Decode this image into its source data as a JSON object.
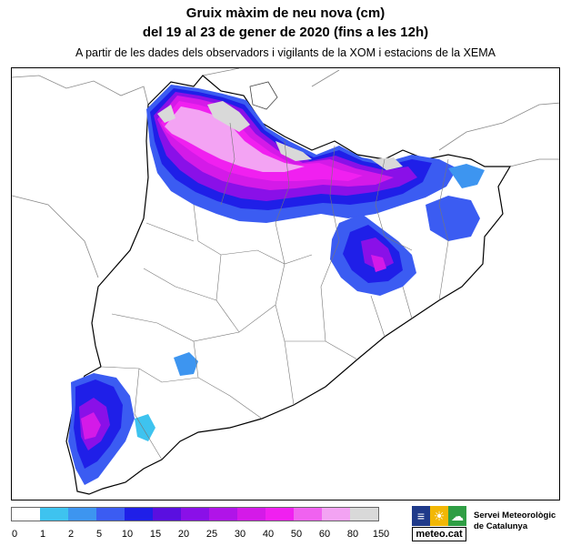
{
  "header": {
    "title_line1": "Gruix màxim de neu nova (cm)",
    "title_line2": "del 19 al 23 de gener de 2020 (fins a les 12h)",
    "subtitle": "A partir de les dades dels observadors i vigilants de la XOM i estacions de la XEMA"
  },
  "legend": {
    "items": [
      {
        "label": "0",
        "color": "#ffffff"
      },
      {
        "label": "1",
        "color": "#3ec3ef"
      },
      {
        "label": "2",
        "color": "#3d95f0"
      },
      {
        "label": "5",
        "color": "#3b5cf2"
      },
      {
        "label": "10",
        "color": "#1f1fe8"
      },
      {
        "label": "15",
        "color": "#5a0fe0"
      },
      {
        "label": "20",
        "color": "#8a10e8"
      },
      {
        "label": "25",
        "color": "#b014e8"
      },
      {
        "label": "30",
        "color": "#d41ae8"
      },
      {
        "label": "40",
        "color": "#f020f0"
      },
      {
        "label": "50",
        "color": "#f062f0"
      },
      {
        "label": "60",
        "color": "#f3a3f3"
      },
      {
        "label": "80",
        "color": "#d9d9d9"
      },
      {
        "label": "150",
        "color": ""
      }
    ]
  },
  "logo": {
    "site": "meteo.cat",
    "org_line1": "Servei Meteorològic",
    "org_line2": "de Catalunya",
    "cell_colors": [
      "#1f3a8a",
      "#f2b705",
      "#2f9e44"
    ]
  }
}
